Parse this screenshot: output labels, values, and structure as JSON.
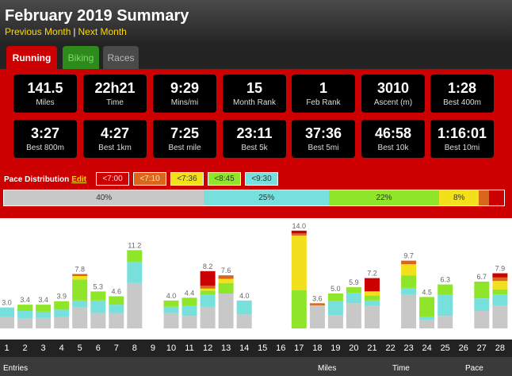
{
  "header": {
    "title": "February 2019 Summary",
    "prev_label": "Previous Month",
    "next_label": "Next Month",
    "separator": "|"
  },
  "tabs": [
    {
      "label": "Running",
      "active": true
    },
    {
      "label": "Biking",
      "active": false
    },
    {
      "label": "Races",
      "active": false
    }
  ],
  "stats": [
    {
      "value": "141.5",
      "label": "Miles"
    },
    {
      "value": "22h21",
      "label": "Time"
    },
    {
      "value": "9:29",
      "label": "Mins/mi"
    },
    {
      "value": "15",
      "label": "Month Rank"
    },
    {
      "value": "1",
      "label": "Feb Rank"
    },
    {
      "value": "3010",
      "label": "Ascent (m)"
    },
    {
      "value": "1:28",
      "label": "Best 400m"
    },
    {
      "value": "3:27",
      "label": "Best 800m"
    },
    {
      "value": "4:27",
      "label": "Best 1km"
    },
    {
      "value": "7:25",
      "label": "Best mile"
    },
    {
      "value": "23:11",
      "label": "Best 5k"
    },
    {
      "value": "37:36",
      "label": "Best 5mi"
    },
    {
      "value": "46:58",
      "label": "Best 10k"
    },
    {
      "value": "1:16:01",
      "label": "Best 10mi"
    }
  ],
  "pace": {
    "label": "Pace Distribution",
    "edit_label": "Edit",
    "legend": [
      {
        "label": "<7:00",
        "color": "#cc0000",
        "text": "#ffd9d9"
      },
      {
        "label": "<7:10",
        "color": "#d9661a",
        "text": "#ffe0c8"
      },
      {
        "label": "<7:36",
        "color": "#f2e01c",
        "text": "#333333"
      },
      {
        "label": "<8:45",
        "color": "#8ee52a",
        "text": "#333333"
      },
      {
        "label": "<9:30",
        "color": "#77e0dc",
        "text": "#333333"
      }
    ],
    "distribution": [
      {
        "label": "40%",
        "value": 40,
        "color": "#c8c8c8"
      },
      {
        "label": "25%",
        "value": 25,
        "color": "#77e0dc"
      },
      {
        "label": "22%",
        "value": 22,
        "color": "#8ee52a"
      },
      {
        "label": "8%",
        "value": 8,
        "color": "#f2e01c"
      },
      {
        "label": "",
        "value": 2,
        "color": "#d9661a"
      },
      {
        "label": "",
        "value": 3,
        "color": "#cc0000"
      }
    ]
  },
  "chart_data": {
    "type": "bar",
    "stacked": true,
    "categories": [
      "1",
      "2",
      "3",
      "4",
      "5",
      "6",
      "7",
      "8",
      "9",
      "10",
      "11",
      "12",
      "13",
      "14",
      "15",
      "16",
      "17",
      "18",
      "19",
      "20",
      "21",
      "22",
      "23",
      "24",
      "25",
      "26",
      "27",
      "28"
    ],
    "totals": [
      "3.0",
      "3.4",
      "3.4",
      "3.9",
      "7.8",
      "5.3",
      "4.6",
      "11.2",
      "",
      "4.0",
      "4.4",
      "8.2",
      "7.6",
      "4.0",
      "",
      "",
      "14.0",
      "3.6",
      "5.0",
      "5.9",
      "7.2",
      "",
      "9.7",
      "4.5",
      "6.3",
      "",
      "6.7",
      "7.9"
    ],
    "colors": {
      "easy": "#c8c8c8",
      "z9_30": "#77e0dc",
      "z8_45": "#8ee52a",
      "z7_36": "#f2e01c",
      "z7_10": "#d9661a",
      "z7_00": "#cc0000"
    },
    "segments": [
      [
        1.6,
        1.4,
        0,
        0,
        0,
        0
      ],
      [
        1.4,
        1.1,
        0.9,
        0,
        0,
        0
      ],
      [
        1.5,
        0.9,
        1.0,
        0,
        0,
        0
      ],
      [
        1.6,
        1.1,
        1.2,
        0,
        0,
        0
      ],
      [
        3.0,
        1.0,
        3.0,
        0.5,
        0.3,
        0
      ],
      [
        2.2,
        1.8,
        1.3,
        0,
        0,
        0
      ],
      [
        2.2,
        1.2,
        1.2,
        0,
        0,
        0
      ],
      [
        6.5,
        3.0,
        1.7,
        0,
        0,
        0
      ],
      [
        0,
        0,
        0,
        0,
        0,
        0
      ],
      [
        2.2,
        0.9,
        0.9,
        0,
        0,
        0
      ],
      [
        1.8,
        1.5,
        1.1,
        0,
        0,
        0
      ],
      [
        3.1,
        1.7,
        0.6,
        0.3,
        0.4,
        2.1
      ],
      [
        5.0,
        0,
        1.5,
        0.6,
        0.5,
        0
      ],
      [
        2.0,
        2.0,
        0,
        0,
        0,
        0
      ],
      [
        0,
        0,
        0,
        0,
        0,
        0
      ],
      [
        0,
        0,
        0,
        0,
        0,
        0
      ],
      [
        0,
        0,
        5.5,
        7.8,
        0.3,
        0.4
      ],
      [
        3.3,
        0,
        0,
        0,
        0.3,
        0
      ],
      [
        1.9,
        2.0,
        1.1,
        0,
        0,
        0
      ],
      [
        3.6,
        1.5,
        0.8,
        0,
        0,
        0
      ],
      [
        3.3,
        0.7,
        0.7,
        0.6,
        0,
        1.9
      ],
      [
        0,
        0,
        0,
        0,
        0,
        0
      ],
      [
        4.8,
        1.0,
        1.8,
        1.6,
        0.5,
        0
      ],
      [
        1.2,
        0.5,
        2.8,
        0,
        0,
        0
      ],
      [
        1.8,
        3.0,
        1.5,
        0,
        0,
        0
      ],
      [
        0,
        0,
        0,
        0,
        0,
        0
      ],
      [
        2.5,
        1.8,
        2.4,
        0,
        0,
        0
      ],
      [
        3.3,
        1.5,
        0.8,
        1.2,
        0.5,
        0.6
      ]
    ],
    "ylim": [
      0,
      16
    ]
  },
  "footer": {
    "entries": "Entries",
    "miles": "Miles",
    "time": "Time",
    "pace": "Pace"
  }
}
